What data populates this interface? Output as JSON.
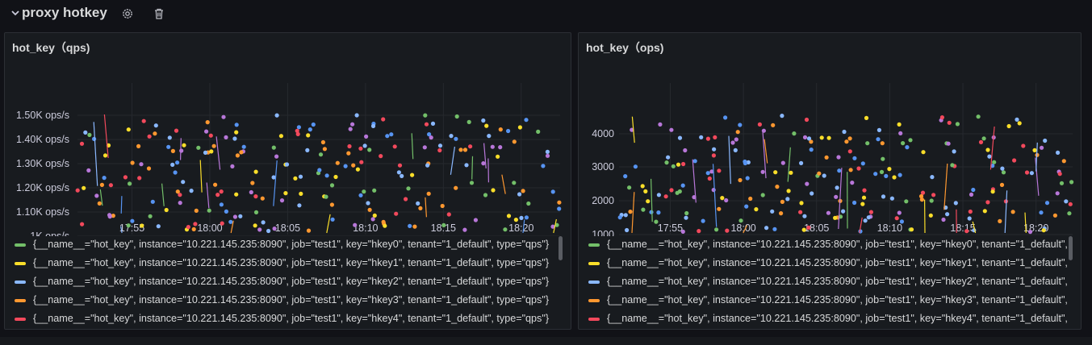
{
  "row": {
    "title": "proxy hotkey",
    "icons": [
      "chevron-down-icon",
      "gear-icon",
      "trash-icon"
    ]
  },
  "panels": [
    {
      "title": "hot_key（qps)",
      "chart_data": {
        "type": "scatter",
        "title": "hot_key（qps)",
        "x_ticks": [
          "17:55",
          "18:00",
          "18:05",
          "18:10",
          "18:15",
          "18:20"
        ],
        "y_ticks": [
          "1K ops/s",
          "1.10K ops/s",
          "1.20K ops/s",
          "1.30K ops/s",
          "1.40K ops/s",
          "1.50K ops/s"
        ],
        "ylim": [
          1000,
          1500
        ],
        "xlim_minutes": [
          "17:51:30",
          "18:22:30"
        ],
        "grid": true,
        "series_colors": [
          "#73bf69",
          "#fade2a",
          "#8ab8ff",
          "#ff9830",
          "#f2495c",
          "#5794f2",
          "#b877d9"
        ]
      },
      "legend": [
        {
          "text": "{__name__=\"hot_key\", instance=\"10.221.145.235:8090\", job=\"test1\", key=\"hkey0\", tenant=\"1_default\", type=\"qps\"}",
          "color": "#73bf69"
        },
        {
          "text": "{__name__=\"hot_key\", instance=\"10.221.145.235:8090\", job=\"test1\", key=\"hkey1\", tenant=\"1_default\", type=\"qps\"}",
          "color": "#fade2a"
        },
        {
          "text": "{__name__=\"hot_key\", instance=\"10.221.145.235:8090\", job=\"test1\", key=\"hkey2\", tenant=\"1_default\", type=\"qps\"}",
          "color": "#8ab8ff"
        },
        {
          "text": "{__name__=\"hot_key\", instance=\"10.221.145.235:8090\", job=\"test1\", key=\"hkey3\", tenant=\"1_default\", type=\"qps\"}",
          "color": "#ff9830"
        },
        {
          "text": "{__name__=\"hot_key\", instance=\"10.221.145.235:8090\", job=\"test1\", key=\"hkey4\", tenant=\"1_default\", type=\"qps\"}",
          "color": "#f2495c"
        }
      ]
    },
    {
      "title": "hot_key（ops)",
      "chart_data": {
        "type": "scatter",
        "title": "hot_key（ops)",
        "x_ticks": [
          "17:55",
          "18:00",
          "18:05",
          "18:10",
          "18:15",
          "18:20"
        ],
        "y_ticks": [
          "1000",
          "2000",
          "3000",
          "4000"
        ],
        "ylim": [
          1000,
          4500
        ],
        "xlim_minutes": [
          "17:51:30",
          "18:22:30"
        ],
        "grid": true,
        "series_colors": [
          "#73bf69",
          "#fade2a",
          "#8ab8ff",
          "#ff9830",
          "#f2495c",
          "#5794f2",
          "#b877d9"
        ]
      },
      "legend": [
        {
          "text": "{__name__=\"hot_key\", instance=\"10.221.145.235:8090\", job=\"test1\", key=\"hkey0\", tenant=\"1_default\",",
          "color": "#73bf69"
        },
        {
          "text": "{__name__=\"hot_key\", instance=\"10.221.145.235:8090\", job=\"test1\", key=\"hkey1\", tenant=\"1_default\",",
          "color": "#fade2a"
        },
        {
          "text": "{__name__=\"hot_key\", instance=\"10.221.145.235:8090\", job=\"test1\", key=\"hkey2\", tenant=\"1_default\",",
          "color": "#8ab8ff"
        },
        {
          "text": "{__name__=\"hot_key\", instance=\"10.221.145.235:8090\", job=\"test1\", key=\"hkey3\", tenant=\"1_default\",",
          "color": "#ff9830"
        },
        {
          "text": "{__name__=\"hot_key\", instance=\"10.221.145.235:8090\", job=\"test1\", key=\"hkey4\", tenant=\"1_default\",",
          "color": "#f2495c"
        }
      ]
    }
  ]
}
